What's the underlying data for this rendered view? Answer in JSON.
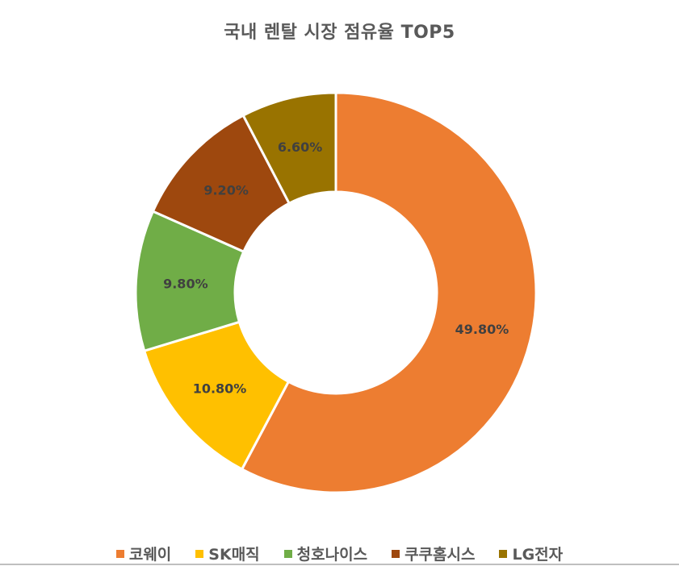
{
  "chart_data": {
    "type": "pie",
    "subtype": "doughnut",
    "title": "국내 렌탈 시장 점유율 TOP5",
    "categories": [
      "코웨이",
      "SK매직",
      "청호나이스",
      "쿠쿠홈시스",
      "LG전자"
    ],
    "values": [
      49.8,
      10.8,
      9.8,
      9.2,
      6.6
    ],
    "data_labels": [
      "49.80%",
      "10.80%",
      "9.80%",
      "9.20%",
      "6.60%"
    ],
    "colors": [
      "#ED7D31",
      "#FFC000",
      "#70AD47",
      "#9E480E",
      "#997300"
    ],
    "legend_position": "bottom",
    "start_angle": 0,
    "direction": "clockwise"
  },
  "title": "국내 렌탈 시장 점유율 TOP5",
  "legend": [
    {
      "label": "코웨이",
      "color": "#ED7D31"
    },
    {
      "label": "SK매직",
      "color": "#FFC000"
    },
    {
      "label": "청호나이스",
      "color": "#70AD47"
    },
    {
      "label": "쿠쿠홈시스",
      "color": "#9E480E"
    },
    {
      "label": "LG전자",
      "color": "#997300"
    }
  ]
}
